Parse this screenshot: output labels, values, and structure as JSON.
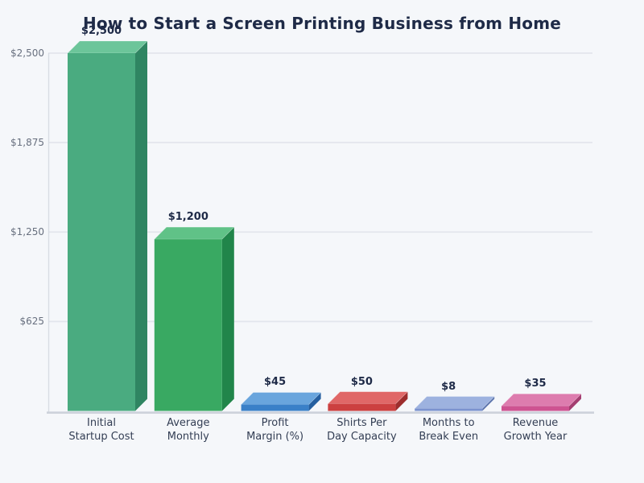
{
  "colors": {
    "background": "#f5f7fa",
    "title_text": "#1e2a47",
    "value_label_text": "#1e2a47",
    "tick_label_text": "#68707f",
    "category_label_text": "#333e54",
    "gridline": "#e3e6ed",
    "y_axis_line": "#d8dce3",
    "x_axis_line": "#ccd1da"
  },
  "chart_data": {
    "type": "bar",
    "title": "How to Start a Screen Printing Business from Home",
    "xlabel": "",
    "ylabel": "",
    "grid": true,
    "legend": false,
    "style": "3d-bars",
    "ylim": [
      0,
      2500
    ],
    "categories": [
      [
        "Initial",
        "Startup Cost"
      ],
      [
        "Average",
        "Monthly"
      ],
      [
        "Profit",
        "Margin (%)"
      ],
      [
        "Shirts Per",
        "Day Capacity"
      ],
      [
        "Months to",
        "Break Even"
      ],
      [
        "Revenue",
        "Growth Year"
      ]
    ],
    "values": [
      2500,
      1200,
      45,
      50,
      8,
      35
    ],
    "value_labels": [
      "$2,500",
      "$1,200",
      "$45",
      "$50",
      "$8",
      "$35"
    ],
    "y_ticks": [
      {
        "value": 625,
        "label": "$625"
      },
      {
        "value": 1250,
        "label": "$1,250"
      },
      {
        "value": 1875,
        "label": "$1,875"
      },
      {
        "value": 2500,
        "label": "$2,500"
      }
    ],
    "bar_colors": [
      {
        "front": "#4aab80",
        "top": "#6cc59a",
        "side": "#2f8562"
      },
      {
        "front": "#39a962",
        "top": "#60c287",
        "side": "#21854a"
      },
      {
        "front": "#3a80c8",
        "top": "#69a5dd",
        "side": "#255fa0"
      },
      {
        "front": "#cc4040",
        "top": "#e06767",
        "side": "#9d2d2d"
      },
      {
        "front": "#7b93cf",
        "top": "#9db2df",
        "side": "#5b73ab"
      },
      {
        "front": "#ce5391",
        "top": "#dd7cae",
        "side": "#a43e71"
      }
    ]
  }
}
